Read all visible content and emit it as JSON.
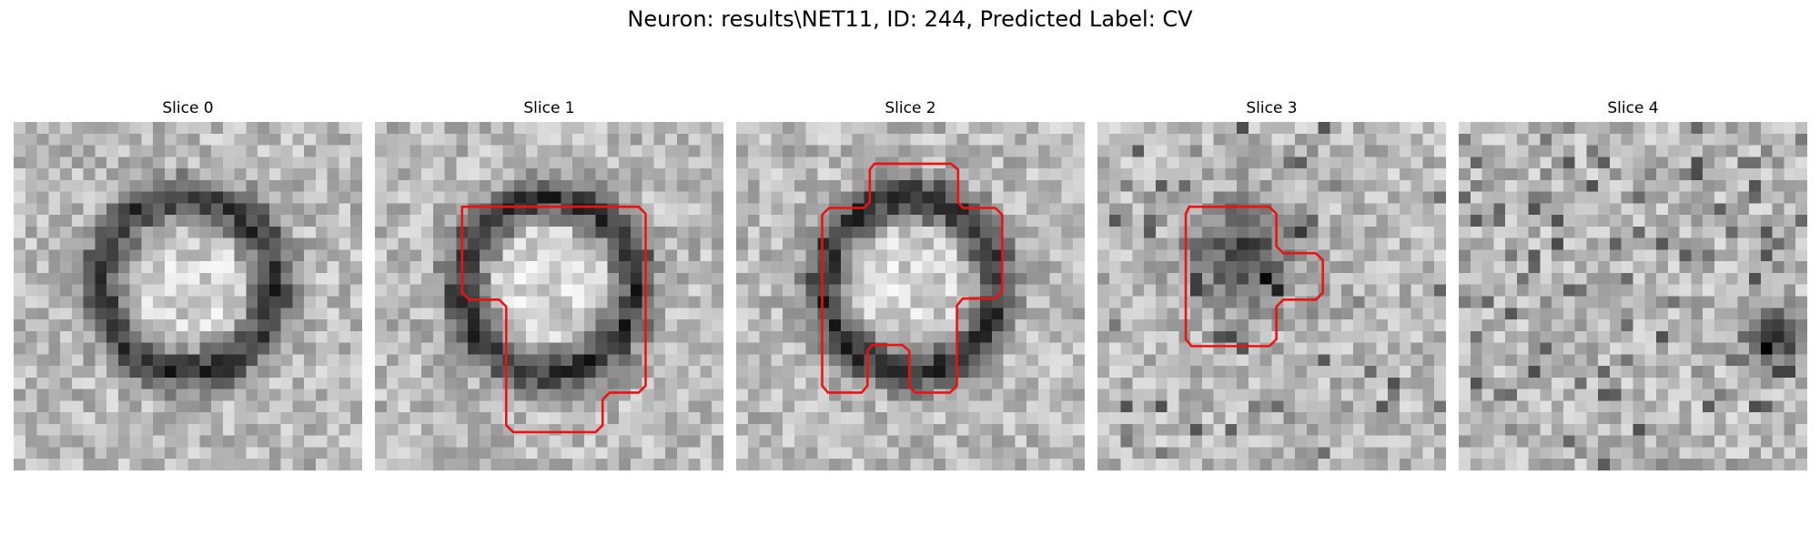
{
  "figure": {
    "title": "Neuron: results\\NET11, ID: 244, Predicted Label: CV"
  },
  "panels": [
    {
      "title": "Slice 0",
      "pattern": "ring-large",
      "has_outline": false
    },
    {
      "title": "Slice 1",
      "pattern": "ring-large",
      "has_outline": true
    },
    {
      "title": "Slice 2",
      "pattern": "ring-large",
      "has_outline": true
    },
    {
      "title": "Slice 3",
      "pattern": "dark-blob",
      "has_outline": true
    },
    {
      "title": "Slice 4",
      "pattern": "noise",
      "has_outline": false
    }
  ],
  "outline_color": "#ee1111",
  "colormap": "gray"
}
